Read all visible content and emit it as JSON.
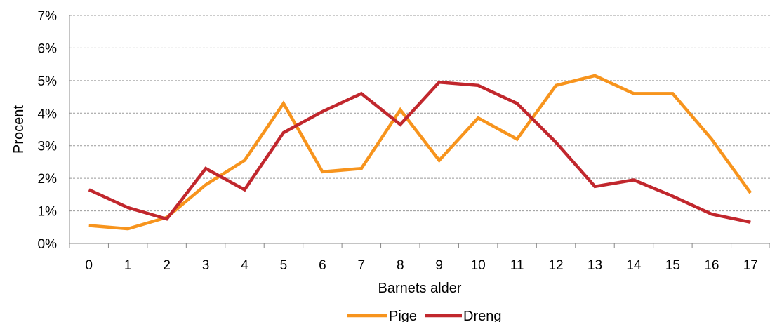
{
  "chart_data": {
    "type": "line",
    "xlabel": "Barnets alder",
    "ylabel": "Procent",
    "ylim": [
      0,
      7
    ],
    "y_ticks": [
      "0%",
      "1%",
      "2%",
      "3%",
      "4%",
      "5%",
      "6%",
      "7%"
    ],
    "categories": [
      "0",
      "1",
      "2",
      "3",
      "4",
      "5",
      "6",
      "7",
      "8",
      "9",
      "10",
      "11",
      "12",
      "13",
      "14",
      "15",
      "16",
      "17"
    ],
    "grid": "horizontal-dashed",
    "legend": "bottom",
    "series": [
      {
        "name": "Pige",
        "color": "#F7941D",
        "values": [
          0.55,
          0.45,
          0.8,
          1.8,
          2.55,
          4.3,
          2.2,
          2.3,
          4.1,
          2.55,
          3.85,
          3.2,
          4.85,
          5.15,
          4.6,
          4.6,
          3.2,
          1.55
        ]
      },
      {
        "name": "Dreng",
        "color": "#C1272D",
        "values": [
          1.65,
          1.1,
          0.75,
          2.3,
          1.65,
          3.4,
          4.05,
          4.6,
          3.65,
          4.95,
          4.85,
          4.3,
          3.1,
          1.75,
          1.95,
          1.45,
          0.9,
          0.65
        ]
      }
    ]
  }
}
